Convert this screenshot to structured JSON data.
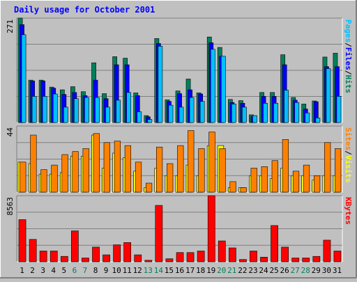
{
  "chart_data": [
    {
      "type": "bar",
      "title": "Daily usage for October 2001",
      "panel": "hits-files-pages",
      "ymax_label": "271",
      "y_axis_legend": [
        "Pages",
        "/",
        "Files",
        "/",
        "Hits"
      ],
      "categories": [
        "1",
        "2",
        "3",
        "4",
        "5",
        "6",
        "7",
        "8",
        "9",
        "10",
        "11",
        "12",
        "13",
        "14",
        "15",
        "16",
        "17",
        "18",
        "19",
        "20",
        "21",
        "22",
        "23",
        "24",
        "25",
        "26",
        "27",
        "28",
        "29",
        "30",
        "31"
      ],
      "weekend_days": [
        "6",
        "7",
        "13",
        "14",
        "20",
        "21",
        "27",
        "28"
      ],
      "ylim": [
        0,
        271
      ],
      "series": [
        {
          "name": "Hits",
          "values": [
            271,
            110,
            110,
            92,
            85,
            93,
            80,
            155,
            75,
            171,
            167,
            77,
            18,
            218,
            59,
            82,
            113,
            77,
            222,
            195,
            60,
            57,
            20,
            78,
            78,
            176,
            65,
            48,
            56,
            170,
            180
          ]
        },
        {
          "name": "Files",
          "values": [
            254,
            108,
            108,
            89,
            73,
            78,
            70,
            110,
            62,
            150,
            150,
            70,
            15,
            205,
            55,
            75,
            85,
            74,
            207,
            172,
            52,
            50,
            16,
            68,
            68,
            150,
            58,
            35,
            54,
            145,
            145
          ]
        },
        {
          "name": "Pages",
          "values": [
            228,
            68,
            68,
            74,
            40,
            62,
            65,
            65,
            40,
            58,
            78,
            28,
            8,
            198,
            45,
            40,
            65,
            55,
            190,
            172,
            48,
            40,
            18,
            50,
            50,
            84,
            52,
            25,
            12,
            140,
            68
          ]
        }
      ],
      "colors": {
        "Hits": "#00805a",
        "Files": "#0000ff",
        "Pages": "#00c0ff"
      }
    },
    {
      "type": "bar",
      "panel": "sites-visits",
      "ymax_label": "44",
      "y_axis_legend": [
        "Sites",
        "/",
        "Visits"
      ],
      "categories": [
        "1",
        "2",
        "3",
        "4",
        "5",
        "6",
        "7",
        "8",
        "9",
        "10",
        "11",
        "12",
        "13",
        "14",
        "15",
        "16",
        "17",
        "18",
        "19",
        "20",
        "21",
        "22",
        "23",
        "24",
        "25",
        "26",
        "27",
        "28",
        "29",
        "30",
        "31"
      ],
      "ylim": [
        0,
        44
      ],
      "series": [
        {
          "name": "Visits",
          "values": [
            20,
            19,
            12,
            12,
            13,
            24,
            24,
            38,
            16,
            26,
            23,
            14,
            3,
            16,
            11,
            11,
            18,
            11,
            31,
            31,
            3,
            3,
            11,
            11,
            9,
            16,
            11,
            11,
            8,
            11,
            11
          ]
        },
        {
          "name": "Sites",
          "values": [
            20,
            38,
            15,
            18,
            25,
            27,
            29,
            39,
            33,
            34,
            31,
            20,
            6,
            30,
            19,
            31,
            41,
            29,
            40,
            29,
            7,
            3,
            16,
            17,
            21,
            35,
            14,
            18,
            11,
            33,
            29
          ]
        }
      ],
      "colors": {
        "Visits": "#ffff00",
        "Sites": "#ff8000"
      }
    },
    {
      "type": "bar",
      "panel": "kbytes",
      "ymax_label": "8563",
      "y_axis_legend": [
        "KBytes"
      ],
      "categories": [
        "1",
        "2",
        "3",
        "4",
        "5",
        "6",
        "7",
        "8",
        "9",
        "10",
        "11",
        "12",
        "13",
        "14",
        "15",
        "16",
        "17",
        "18",
        "19",
        "20",
        "21",
        "22",
        "23",
        "24",
        "25",
        "26",
        "27",
        "28",
        "29",
        "30",
        "31"
      ],
      "ylim": [
        0,
        8563
      ],
      "series": [
        {
          "name": "KBytes",
          "values": [
            5460,
            2900,
            1400,
            1400,
            700,
            4000,
            500,
            1900,
            900,
            2200,
            2500,
            900,
            200,
            7300,
            400,
            1200,
            1200,
            1400,
            8563,
            2700,
            1800,
            300,
            1400,
            600,
            4700,
            1900,
            500,
            500,
            700,
            2800,
            1400
          ]
        }
      ],
      "colors": {
        "KBytes": "#ff0000"
      }
    }
  ]
}
